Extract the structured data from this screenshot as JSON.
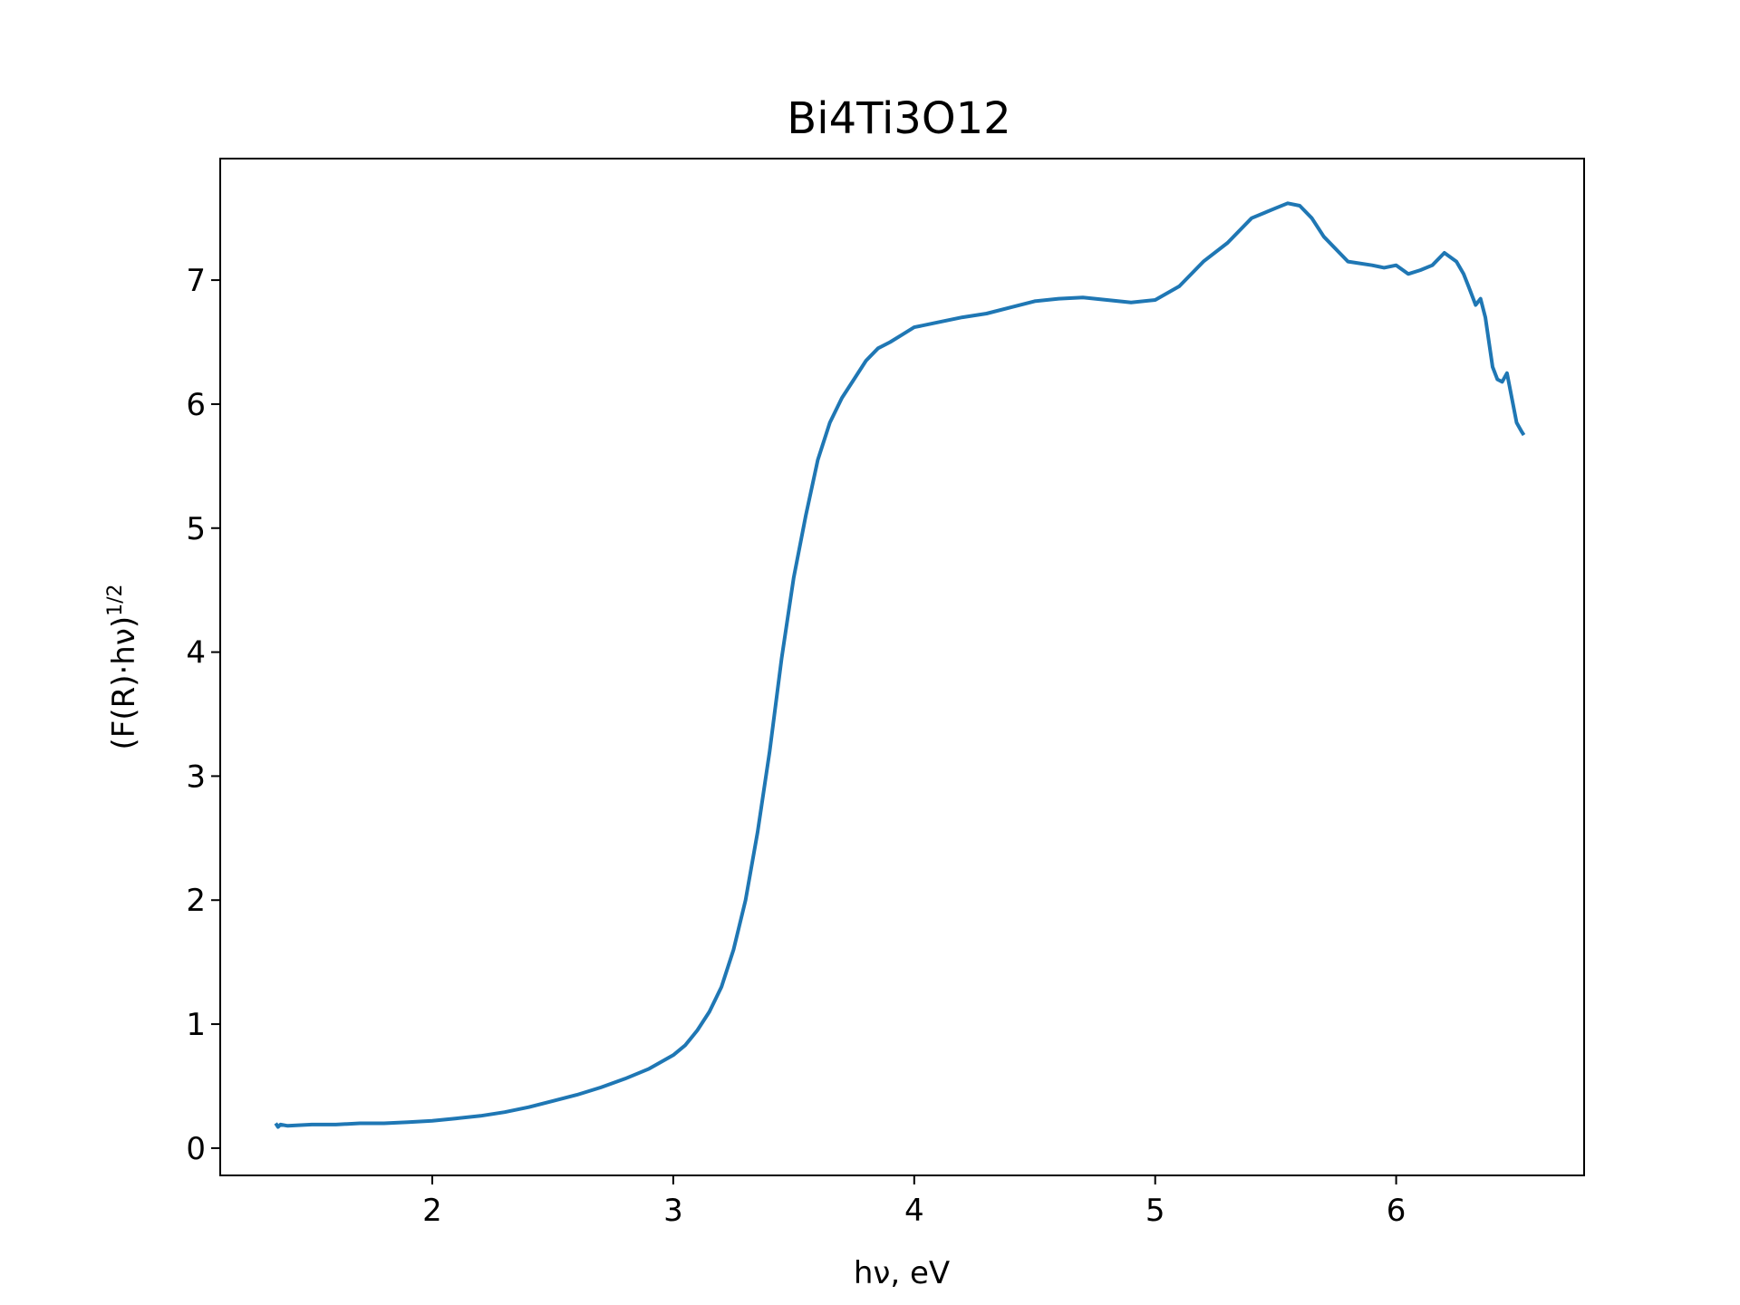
{
  "chart_data": {
    "type": "line",
    "title": "Bi4Ti3O12",
    "xlabel": "hν, eV",
    "ylabel": "(F(R)·hν)",
    "ylabel_superscript": "1/2",
    "xlim": [
      1.12,
      6.78
    ],
    "ylim": [
      -0.22,
      7.98
    ],
    "xticks": [
      "2",
      "3",
      "4",
      "5",
      "6"
    ],
    "yticks": [
      "0",
      "1",
      "2",
      "3",
      "4",
      "5",
      "6",
      "7"
    ],
    "grid": false,
    "line_color": "#1f77b4",
    "series": [
      {
        "x": [
          1.35,
          1.36,
          1.37,
          1.4,
          1.5,
          1.6,
          1.7,
          1.8,
          1.9,
          2.0,
          2.1,
          2.2,
          2.3,
          2.4,
          2.5,
          2.6,
          2.7,
          2.8,
          2.9,
          3.0,
          3.05,
          3.1,
          3.15,
          3.2,
          3.25,
          3.3,
          3.35,
          3.4,
          3.45,
          3.5,
          3.55,
          3.6,
          3.65,
          3.7,
          3.75,
          3.8,
          3.85,
          3.9,
          3.95,
          4.0,
          4.1,
          4.2,
          4.3,
          4.4,
          4.5,
          4.6,
          4.7,
          4.8,
          4.9,
          5.0,
          5.1,
          5.2,
          5.3,
          5.4,
          5.5,
          5.55,
          5.6,
          5.65,
          5.7,
          5.8,
          5.9,
          5.95,
          6.0,
          6.05,
          6.1,
          6.15,
          6.2,
          6.25,
          6.28,
          6.3,
          6.33,
          6.35,
          6.37,
          6.4,
          6.42,
          6.44,
          6.46,
          6.48,
          6.5,
          6.52,
          6.53
        ],
        "y": [
          0.2,
          0.17,
          0.19,
          0.18,
          0.19,
          0.19,
          0.2,
          0.2,
          0.21,
          0.22,
          0.24,
          0.26,
          0.29,
          0.33,
          0.38,
          0.43,
          0.49,
          0.56,
          0.64,
          0.75,
          0.83,
          0.95,
          1.1,
          1.3,
          1.6,
          2.0,
          2.55,
          3.2,
          3.95,
          4.6,
          5.1,
          5.55,
          5.85,
          6.05,
          6.2,
          6.35,
          6.45,
          6.5,
          6.56,
          6.62,
          6.66,
          6.7,
          6.73,
          6.78,
          6.83,
          6.85,
          6.86,
          6.84,
          6.82,
          6.84,
          6.95,
          7.15,
          7.3,
          7.5,
          7.58,
          7.62,
          7.6,
          7.5,
          7.35,
          7.15,
          7.12,
          7.1,
          7.12,
          7.05,
          7.08,
          7.12,
          7.22,
          7.15,
          7.05,
          6.95,
          6.8,
          6.85,
          6.7,
          6.3,
          6.2,
          6.18,
          6.25,
          6.05,
          5.85,
          5.78,
          5.75
        ]
      }
    ]
  }
}
